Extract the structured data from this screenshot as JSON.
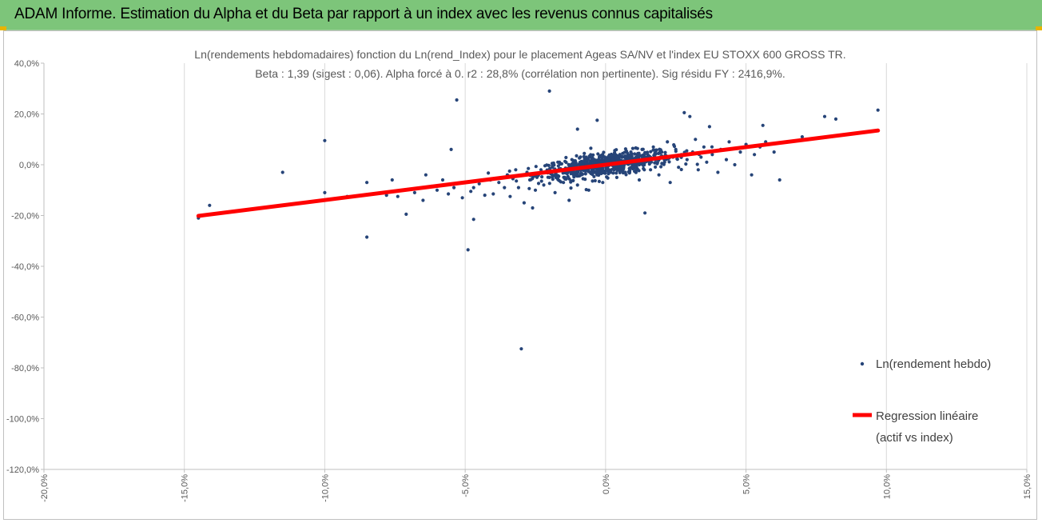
{
  "header": {
    "title": "ADAM Informe. Estimation du Alpha et du Beta par rapport à un index avec les revenus connus capitalisés",
    "background": "#7dc57a"
  },
  "chart_data": {
    "type": "scatter",
    "title": "Ln(rendements hebdomadaires) fonction du Ln(rend_Index) pour le placement Ageas SA/NV et l'index EU STOXX 600 GROSS TR.",
    "subtitle": "Beta : 1,39 (sigest : 0,06). Alpha forcé à 0. r2 : 28,8% (corrélation non pertinente). Sig résidu FY : 2416,9%.",
    "xlim": [
      -0.2,
      0.15
    ],
    "ylim": [
      -1.2,
      0.4
    ],
    "x_ticks": [
      -0.2,
      -0.15,
      -0.1,
      -0.05,
      0.0,
      0.05,
      0.1,
      0.15
    ],
    "x_tick_labels": [
      "-20,0%",
      "-15,0%",
      "-10,0%",
      "-5,0%",
      "0,0%",
      "5,0%",
      "10,0%",
      "15,0%"
    ],
    "y_ticks": [
      0.4,
      0.2,
      0.0,
      -0.2,
      -0.4,
      -0.6,
      -0.8,
      -1.0,
      -1.2
    ],
    "y_tick_labels": [
      "40,0%",
      "20,0%",
      "0,0%",
      "-20,0%",
      "-40,0%",
      "-60,0%",
      "-80,0%",
      "-100,0%",
      "-120,0%"
    ],
    "grid_x": true,
    "grid_y": false,
    "legend_position": "right",
    "series": [
      {
        "name": "Ln(rendement hebdo)",
        "kind": "scatter",
        "color": "#264478",
        "points": [
          [
            -0.145,
            -0.21
          ],
          [
            -0.141,
            -0.16
          ],
          [
            -0.115,
            -0.03
          ],
          [
            -0.1,
            0.095
          ],
          [
            -0.1,
            -0.11
          ],
          [
            -0.092,
            -0.125
          ],
          [
            -0.085,
            -0.285
          ],
          [
            -0.085,
            -0.07
          ],
          [
            -0.078,
            -0.12
          ],
          [
            -0.076,
            -0.06
          ],
          [
            -0.074,
            -0.125
          ],
          [
            -0.071,
            -0.195
          ],
          [
            -0.068,
            -0.11
          ],
          [
            -0.065,
            -0.14
          ],
          [
            -0.064,
            -0.04
          ],
          [
            -0.062,
            -0.085
          ],
          [
            -0.06,
            -0.1
          ],
          [
            -0.058,
            -0.06
          ],
          [
            -0.056,
            -0.115
          ],
          [
            -0.055,
            0.06
          ],
          [
            -0.054,
            -0.09
          ],
          [
            -0.053,
            0.255
          ],
          [
            -0.051,
            -0.13
          ],
          [
            -0.05,
            -0.07
          ],
          [
            -0.048,
            -0.105
          ],
          [
            -0.047,
            -0.09
          ],
          [
            -0.049,
            -0.335
          ],
          [
            -0.047,
            -0.215
          ],
          [
            -0.045,
            -0.075
          ],
          [
            -0.043,
            -0.12
          ],
          [
            -0.041,
            -0.06
          ],
          [
            -0.04,
            -0.115
          ],
          [
            -0.038,
            -0.07
          ],
          [
            -0.036,
            -0.09
          ],
          [
            -0.035,
            -0.04
          ],
          [
            -0.034,
            -0.125
          ],
          [
            -0.033,
            -0.055
          ],
          [
            -0.032,
            -0.02
          ],
          [
            -0.031,
            -0.09
          ],
          [
            -0.03,
            -0.725
          ],
          [
            -0.029,
            -0.15
          ],
          [
            -0.028,
            -0.03
          ],
          [
            -0.027,
            -0.06
          ],
          [
            -0.026,
            -0.17
          ],
          [
            -0.025,
            -0.1
          ],
          [
            -0.024,
            -0.04
          ],
          [
            -0.023,
            -0.02
          ],
          [
            -0.022,
            -0.08
          ],
          [
            -0.02,
            0.29
          ],
          [
            -0.02,
            -0.05
          ],
          [
            -0.019,
            -0.01
          ],
          [
            -0.018,
            -0.11
          ],
          [
            -0.017,
            0.01
          ],
          [
            -0.015,
            -0.07
          ],
          [
            -0.014,
            -0.03
          ],
          [
            -0.013,
            -0.14
          ],
          [
            -0.012,
            0.02
          ],
          [
            -0.011,
            -0.04
          ],
          [
            -0.01,
            -0.08
          ],
          [
            -0.01,
            0.14
          ],
          [
            -0.009,
            -0.02
          ],
          [
            -0.008,
            -0.055
          ],
          [
            -0.007,
            0.03
          ],
          [
            -0.006,
            -0.1
          ],
          [
            -0.005,
            -0.01
          ],
          [
            -0.004,
            0.02
          ],
          [
            -0.003,
            -0.04
          ],
          [
            -0.002,
            0.01
          ],
          [
            -0.001,
            -0.07
          ],
          [
            0.0,
            0.0
          ],
          [
            -0.003,
            0.175
          ],
          [
            0.001,
            0.02
          ],
          [
            0.002,
            -0.02
          ],
          [
            0.003,
            0.04
          ],
          [
            0.004,
            -0.05
          ],
          [
            0.005,
            0.01
          ],
          [
            0.006,
            0.03
          ],
          [
            0.007,
            -0.03
          ],
          [
            0.008,
            0.02
          ],
          [
            0.009,
            0.05
          ],
          [
            0.01,
            -0.01
          ],
          [
            0.011,
            0.03
          ],
          [
            0.012,
            -0.06
          ],
          [
            0.013,
            0.06
          ],
          [
            0.014,
            0.01
          ],
          [
            0.014,
            -0.19
          ],
          [
            0.015,
            0.04
          ],
          [
            0.016,
            -0.02
          ],
          [
            0.017,
            0.07
          ],
          [
            0.018,
            0.02
          ],
          [
            0.019,
            -0.04
          ],
          [
            0.02,
            0.05
          ],
          [
            0.021,
            0.01
          ],
          [
            0.022,
            0.09
          ],
          [
            0.023,
            -0.07
          ],
          [
            0.024,
            0.03
          ],
          [
            0.025,
            0.06
          ],
          [
            0.026,
            -0.01
          ],
          [
            0.027,
            0.04
          ],
          [
            0.028,
            0.205
          ],
          [
            0.029,
            0.02
          ],
          [
            0.03,
            0.19
          ],
          [
            0.031,
            0.05
          ],
          [
            0.032,
            0.1
          ],
          [
            0.033,
            -0.02
          ],
          [
            0.034,
            0.03
          ],
          [
            0.035,
            0.07
          ],
          [
            0.036,
            0.01
          ],
          [
            0.037,
            0.15
          ],
          [
            0.038,
            0.04
          ],
          [
            0.04,
            -0.03
          ],
          [
            0.041,
            0.06
          ],
          [
            0.043,
            0.02
          ],
          [
            0.044,
            0.09
          ],
          [
            0.046,
            0.0
          ],
          [
            0.048,
            0.05
          ],
          [
            0.05,
            0.08
          ],
          [
            0.052,
            -0.04
          ],
          [
            0.053,
            0.04
          ],
          [
            0.055,
            0.07
          ],
          [
            0.056,
            0.155
          ],
          [
            0.057,
            0.09
          ],
          [
            0.06,
            0.05
          ],
          [
            0.062,
            -0.06
          ],
          [
            0.07,
            0.11
          ],
          [
            0.078,
            0.19
          ],
          [
            0.082,
            0.18
          ],
          [
            0.097,
            0.215
          ]
        ],
        "cluster": {
          "count": 700,
          "x_sd": 0.012,
          "beta": 1.39,
          "resid_sd": 0.022
        }
      },
      {
        "name": "Regression linéaire (actif vs index)",
        "name_lines": [
          "Regression linéaire",
          "(actif vs index)"
        ],
        "kind": "line",
        "color": "#ff0000",
        "x": [
          -0.145,
          0.097
        ],
        "y": [
          -0.2016,
          0.1348
        ]
      }
    ]
  }
}
